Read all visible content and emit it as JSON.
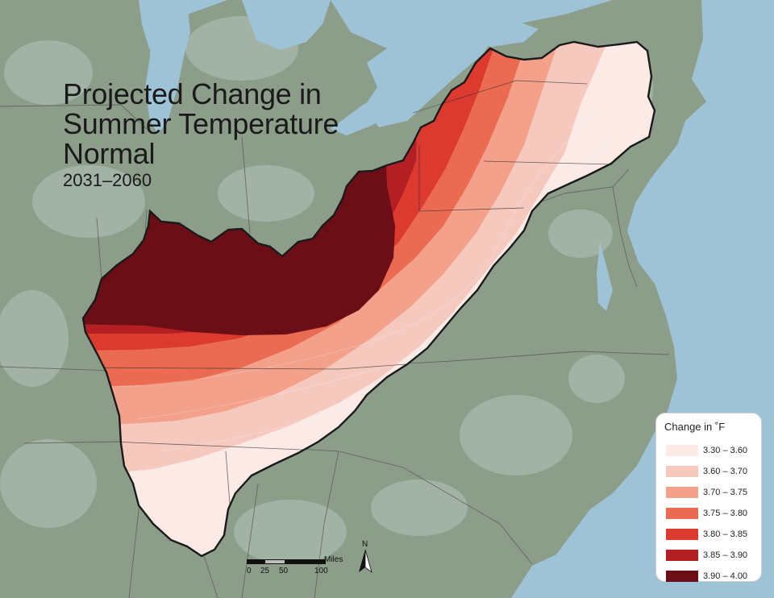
{
  "title": {
    "line1": "Projected Change in",
    "line2": "Summer Temperature",
    "line3": "Normal",
    "subtitle": "2031–2060"
  },
  "legend": {
    "title": "Change in ˚F",
    "items": [
      {
        "label": "3.30 – 3.60",
        "color": "#fbeae6"
      },
      {
        "label": "3.60 – 3.70",
        "color": "#f6c9bf"
      },
      {
        "label": "3.70 – 3.75",
        "color": "#f3a18b"
      },
      {
        "label": "3.75 – 3.80",
        "color": "#ea6b52"
      },
      {
        "label": "3.80 – 3.85",
        "color": "#dc3a2f"
      },
      {
        "label": "3.85 – 3.90",
        "color": "#b41f24"
      },
      {
        "label": "3.90 – 4.00",
        "color": "#6b0e16"
      }
    ]
  },
  "scale": {
    "unit": "Miles",
    "ticks": [
      "0",
      "25",
      "50",
      "100"
    ]
  },
  "north_arrow": {
    "label": "N",
    "icon": "north-arrow-icon"
  },
  "colors": {
    "water": "#9fc3d6",
    "land": "#8a9c88",
    "outline": "#1a1a1a"
  }
}
